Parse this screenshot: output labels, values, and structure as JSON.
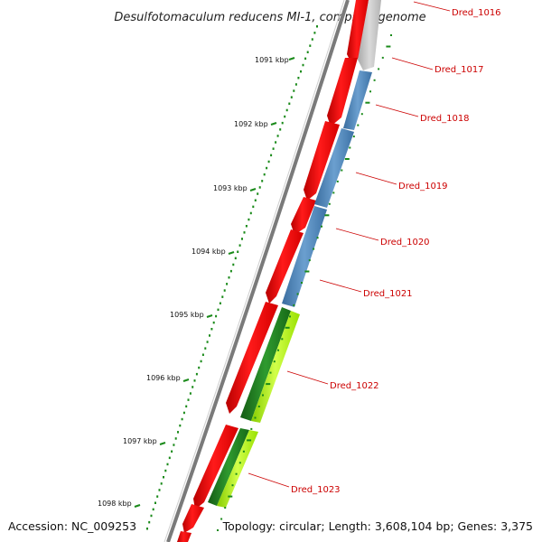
{
  "title": "Desulfotomaculum reducens MI-1, complete genome",
  "accession": "Accession: NC_009253",
  "summary": "Topology: circular; Length: 3,608,104 bp; Genes: 3,375",
  "colors": {
    "cds": "#ff0000",
    "blue": "#4f86bd",
    "dark_green": "#1e7d1e",
    "light_green": "#a6f500",
    "gray": "#bfbfbf",
    "backbone": "#7a7a7a",
    "ticks": "#1a8a1a",
    "label": "#cc0000"
  },
  "kbp_ticks": [
    "1091 kbp",
    "1092 kbp",
    "1093 kbp",
    "1094 kbp",
    "1095 kbp",
    "1096 kbp",
    "1097 kbp",
    "1098 kbp"
  ],
  "gene_labels": [
    "Dred_1016",
    "Dred_1017",
    "Dred_1018",
    "Dred_1019",
    "Dred_1020",
    "Dred_1021",
    "Dred_1022",
    "Dred_1023"
  ]
}
